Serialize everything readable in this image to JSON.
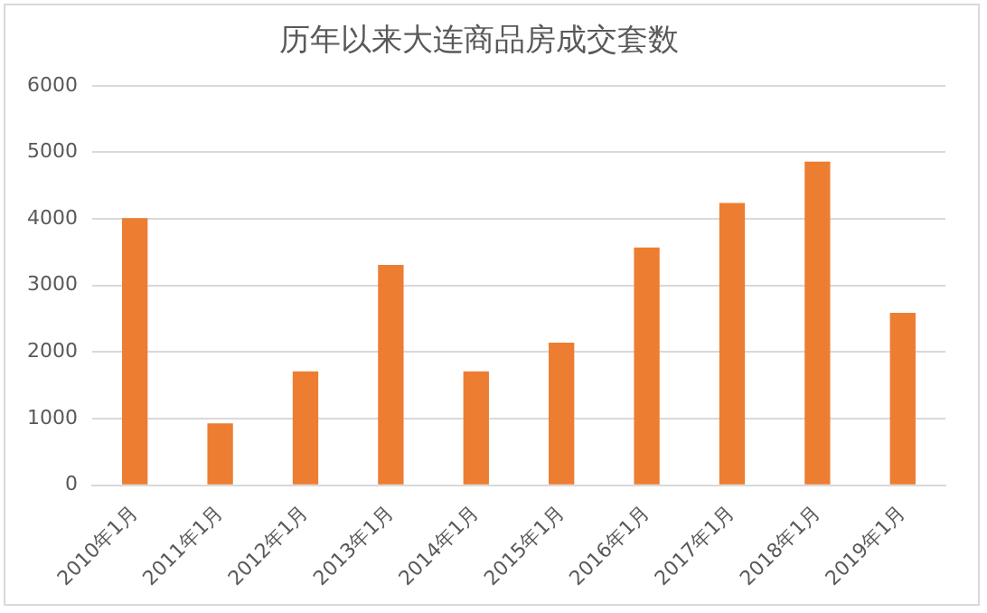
{
  "chart_data": {
    "type": "bar",
    "title": "历年以来大连商品房成交套数",
    "categories": [
      "2010年1月",
      "2011年1月",
      "2012年1月",
      "2013年1月",
      "2014年1月",
      "2015年1月",
      "2016年1月",
      "2017年1月",
      "2018年1月",
      "2019年1月"
    ],
    "values": [
      4010,
      930,
      1710,
      3310,
      1710,
      2140,
      3570,
      4240,
      4860,
      2590
    ],
    "color": "#ed7d31",
    "ylim": [
      0,
      6000
    ],
    "yticks": [
      0,
      1000,
      2000,
      3000,
      4000,
      5000,
      6000
    ],
    "grid": "y"
  }
}
